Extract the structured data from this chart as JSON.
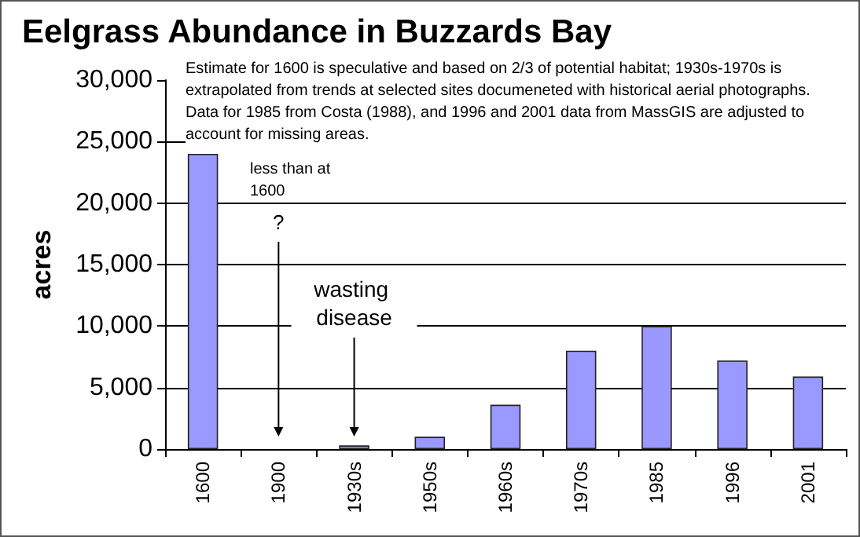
{
  "chart_data": {
    "type": "bar",
    "title": "Eelgrass Abundance in Buzzards Bay",
    "ylabel": "acres",
    "categories": [
      "1600",
      "1900",
      "1930s",
      "1950s",
      "1960s",
      "1970s",
      "1985",
      "1996",
      "2001"
    ],
    "values": [
      24000,
      null,
      300,
      1000,
      3600,
      8000,
      10000,
      7200,
      5900
    ],
    "color": "#9999ff",
    "ylim": [
      0,
      30000
    ],
    "yticks": [
      0,
      {
        "value": 5000,
        "label": "5,000"
      },
      {
        "value": 10000,
        "label": "10,000"
      },
      {
        "value": 15000,
        "label": "15,000"
      },
      {
        "value": 20000,
        "label": "20,000"
      },
      {
        "value": 25000,
        "label": "25,000"
      },
      {
        "value": 30000,
        "label": "30,000"
      }
    ],
    "grid": "y",
    "annotations": [
      "Estimate for 1600 is speculative and based on 2/3 of potential habitat; 1930s-1970s is extrapolated from trends at selected sites documeneted with historical aerial photographs. Data for 1985 from Costa (1988), and 1996 and 2001 data from MassGIS are adjusted to account for missing areas.",
      "less than at 1600",
      "?",
      "wasting disease"
    ]
  }
}
